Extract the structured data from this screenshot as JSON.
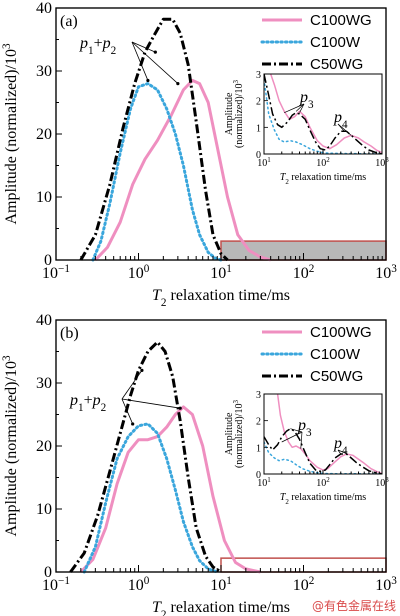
{
  "watermark": "@有色金属在线",
  "colors": {
    "c100wg": "#ef8fc0",
    "c100w": "#3aa6dc",
    "c50wg": "#000000",
    "box_edge": "#c0504d",
    "box_fill": "#b8b8b8"
  },
  "chart_data": [
    {
      "type": "line",
      "panel_label": "(a)",
      "xlabel": "T2 relaxation time/ms",
      "ylabel": "Amplitude (normalized)/10^3",
      "x_scale": "log",
      "xlim": [
        0.1,
        1000
      ],
      "ylim": [
        0,
        40
      ],
      "yticks": [
        0,
        10,
        20,
        30,
        40
      ],
      "xtick_labels": [
        "10^-1",
        "10^0",
        "10^1",
        "10^2",
        "10^3"
      ],
      "legend": {
        "position": "top-right",
        "entries": [
          "C100WG",
          "C100W",
          "C50WG"
        ]
      },
      "annotation": "p1+p2",
      "series": [
        {
          "name": "C100WG",
          "style": "solid",
          "x": [
            0.3,
            0.42,
            0.6,
            0.85,
            1.2,
            1.7,
            2.5,
            3.5,
            4.5,
            5.5,
            7,
            9,
            12,
            16,
            22,
            30,
            40
          ],
          "y": [
            0,
            2,
            6,
            12,
            16,
            19,
            23,
            27,
            28.5,
            28,
            25,
            18,
            10,
            4,
            1.5,
            0.5,
            0
          ]
        },
        {
          "name": "C100W",
          "style": "dotted",
          "x": [
            0.28,
            0.35,
            0.45,
            0.6,
            0.8,
            1.0,
            1.3,
            1.7,
            2.2,
            2.8,
            3.5,
            4.5,
            5.5,
            7,
            8.5,
            10
          ],
          "y": [
            0,
            3,
            9,
            17,
            24,
            27.5,
            28,
            27,
            24,
            20,
            15,
            8,
            4,
            1.2,
            0.3,
            0
          ]
        },
        {
          "name": "C50WG",
          "style": "dashdot",
          "x": [
            0.2,
            0.3,
            0.45,
            0.65,
            0.9,
            1.2,
            1.6,
            2.0,
            2.6,
            3.2,
            4.0,
            5.0,
            6.5,
            8,
            10,
            12
          ],
          "y": [
            0,
            4,
            12,
            21,
            28,
            33,
            36,
            38.2,
            38.2,
            36,
            31,
            22,
            11,
            4,
            1,
            0
          ]
        }
      ],
      "inset": {
        "xlim": [
          10,
          1000
        ],
        "ylim": [
          0,
          3
        ],
        "yticks": [
          0,
          1,
          2,
          3
        ],
        "xtick_labels": [
          "10^1",
          "10^2",
          "10^3"
        ],
        "xlabel": "T2 relaxation time/ms",
        "ylabel_line1": "Amplitude",
        "ylabel_line2": "(normalized)/10^3",
        "annotations": [
          "p3",
          "p4"
        ],
        "series": [
          {
            "name": "C100WG",
            "style": "solid",
            "x": [
              13,
              15,
              18,
              22,
              27,
              33,
              40,
              50,
              60,
              80,
              100,
              130,
              170,
              230,
              300,
              400,
              500,
              650,
              800,
              1000
            ],
            "y": [
              3,
              2.6,
              2.0,
              1.6,
              1.3,
              1.4,
              1.6,
              1.4,
              1.0,
              0.5,
              0.3,
              0.2,
              0.35,
              0.6,
              0.7,
              0.6,
              0.45,
              0.3,
              0.15,
              0.05
            ]
          },
          {
            "name": "C100W",
            "style": "dotted",
            "x": [
              10,
              12,
              15,
              18,
              22,
              28,
              35,
              45,
              60,
              80,
              100,
              130,
              200,
              400,
              1000
            ],
            "y": [
              2.8,
              1.5,
              0.9,
              0.55,
              0.45,
              0.5,
              0.45,
              0.35,
              0.2,
              0.1,
              0.05,
              0.03,
              0.02,
              0.01,
              0
            ]
          },
          {
            "name": "C50WG",
            "style": "dashdot",
            "x": [
              10,
              12,
              14,
              17,
              20,
              25,
              30,
              35,
              40,
              50,
              60,
              75,
              90,
              110,
              130,
              160,
              200,
              250,
              300,
              380,
              480,
              600,
              800,
              1000
            ],
            "y": [
              3,
              2.2,
              1.5,
              1.1,
              1.0,
              1.2,
              1.45,
              1.55,
              1.5,
              1.3,
              0.9,
              0.45,
              0.2,
              0.15,
              0.3,
              0.6,
              0.85,
              0.85,
              0.7,
              0.5,
              0.3,
              0.15,
              0.05,
              0
            ]
          }
        ]
      }
    },
    {
      "type": "line",
      "panel_label": "(b)",
      "xlabel": "T2 relaxation time/ms",
      "ylabel": "Amplitude (normalized)/10^3",
      "x_scale": "log",
      "xlim": [
        0.1,
        1000
      ],
      "ylim": [
        0,
        40
      ],
      "yticks": [
        0,
        10,
        20,
        30,
        40
      ],
      "xtick_labels": [
        "10^-1",
        "10^0",
        "10^1",
        "10^2",
        "10^3"
      ],
      "legend": {
        "position": "top-right",
        "entries": [
          "C100WG",
          "C100W",
          "C50WG"
        ]
      },
      "annotation": "p1+p2",
      "series": [
        {
          "name": "C100WG",
          "style": "solid",
          "x": [
            0.2,
            0.28,
            0.4,
            0.55,
            0.75,
            1.0,
            1.3,
            1.7,
            2.2,
            2.8,
            3.5,
            4.5,
            6,
            8,
            11,
            15,
            20,
            30
          ],
          "y": [
            0,
            2,
            7,
            14,
            19,
            21,
            21,
            21.5,
            23,
            25,
            26.2,
            25,
            20,
            12,
            5,
            1.5,
            0.5,
            0
          ]
        },
        {
          "name": "C100W",
          "style": "dotted",
          "x": [
            0.22,
            0.3,
            0.4,
            0.55,
            0.75,
            1.0,
            1.3,
            1.7,
            2.2,
            2.8,
            3.5,
            4.5,
            5.5,
            7,
            9
          ],
          "y": [
            0,
            4,
            11,
            18,
            21.5,
            23.2,
            23.5,
            22,
            18,
            13,
            8,
            4,
            1.8,
            0.5,
            0
          ]
        },
        {
          "name": "C50WG",
          "style": "dashdot",
          "x": [
            0.15,
            0.22,
            0.32,
            0.45,
            0.6,
            0.8,
            1.0,
            1.3,
            1.7,
            2.1,
            2.6,
            3.2,
            4.0,
            5.0,
            6.5,
            8,
            10
          ],
          "y": [
            0,
            3,
            9,
            16,
            22,
            28,
            32,
            35,
            36.5,
            35,
            31,
            24,
            15,
            7,
            2.5,
            0.8,
            0
          ]
        }
      ],
      "inset": {
        "xlim": [
          10,
          1000
        ],
        "ylim": [
          0,
          3
        ],
        "yticks": [
          0,
          1,
          2,
          3
        ],
        "xtick_labels": [
          "10^1",
          "10^2",
          "10^3"
        ],
        "xlabel": "T2 relaxation time/ms",
        "ylabel_line1": "Amplitude",
        "ylabel_line2": "(normalized)/10^3",
        "annotations": [
          "p3",
          "p4"
        ],
        "series": [
          {
            "name": "C100WG",
            "style": "solid",
            "x": [
              17,
              19,
              22,
              26,
              30,
              35,
              42,
              50,
              60,
              80,
              100,
              120,
              150,
              200,
              250,
              320,
              400,
              500,
              650,
              800,
              1000
            ],
            "y": [
              3,
              2.2,
              1.6,
              1.2,
              1.0,
              1.05,
              0.95,
              0.75,
              0.5,
              0.25,
              0.15,
              0.2,
              0.4,
              0.65,
              0.75,
              0.7,
              0.55,
              0.4,
              0.2,
              0.1,
              0.02
            ]
          },
          {
            "name": "C100W",
            "style": "dotted",
            "x": [
              10,
              12,
              15,
              18,
              22,
              28,
              35,
              45,
              60,
              80,
              100,
              150,
              300,
              1000
            ],
            "y": [
              1.2,
              0.8,
              0.6,
              0.5,
              0.55,
              0.5,
              0.35,
              0.2,
              0.1,
              0.05,
              0.02,
              0.01,
              0.01,
              0
            ]
          },
          {
            "name": "C50WG",
            "style": "dashdot",
            "x": [
              10,
              12,
              14,
              17,
              20,
              24,
              28,
              33,
              40,
              50,
              60,
              75,
              90,
              110,
              130,
              160,
              200,
              250,
              300,
              380,
              480,
              600,
              800,
              1000
            ],
            "y": [
              1.4,
              1.1,
              0.9,
              1.1,
              1.4,
              1.6,
              1.7,
              1.6,
              1.3,
              0.8,
              0.4,
              0.15,
              0.1,
              0.15,
              0.35,
              0.6,
              0.75,
              0.75,
              0.6,
              0.4,
              0.25,
              0.12,
              0.04,
              0
            ]
          }
        ]
      }
    }
  ]
}
